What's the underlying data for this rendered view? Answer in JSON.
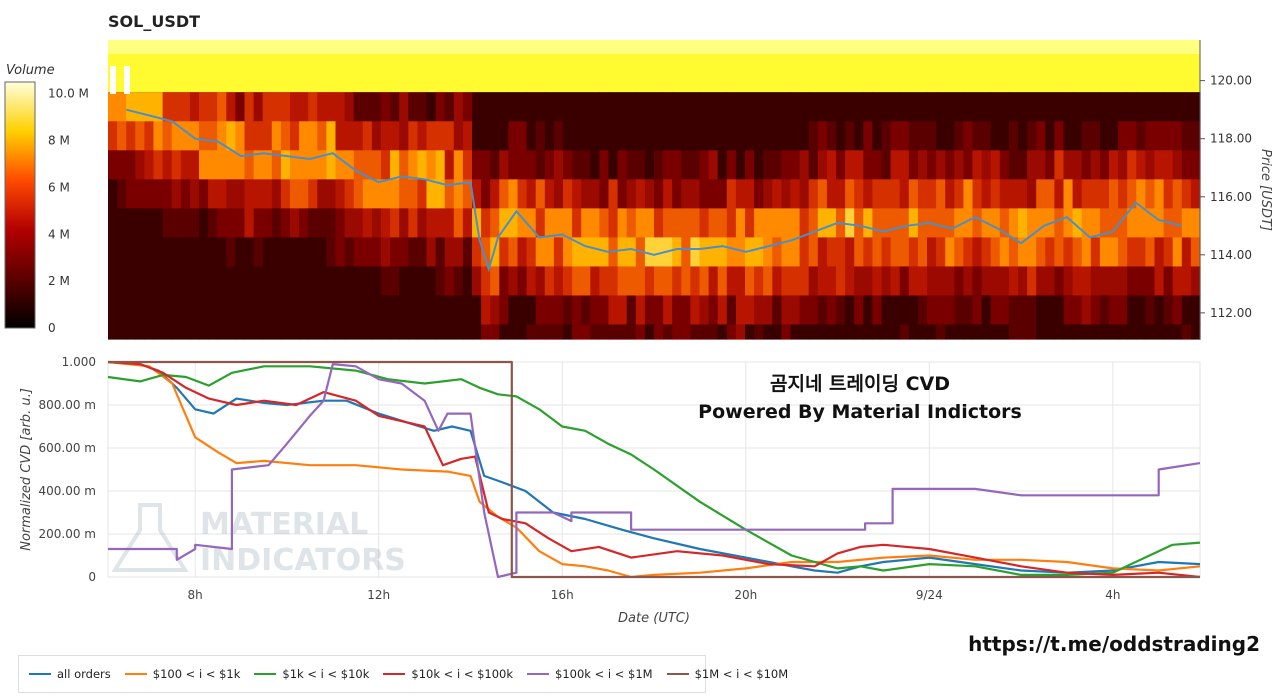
{
  "title": "SOL_USDT",
  "overlay": {
    "line1": "곰지네 트레이딩 CVD",
    "line2": "Powered By Material Indictors"
  },
  "url": "https://t.me/oddstrading2",
  "logo_text": [
    "MATERIAL",
    "INDICATORS"
  ],
  "chart_data": [
    {
      "type": "heatmap",
      "title": "SOL_USDT",
      "ylabel": "Price [USDT]",
      "colorbar_label": "Volume",
      "colorbar_ticks": [
        "10.0 M",
        "8 M",
        "6 M",
        "4 M",
        "2 M",
        "0"
      ],
      "colorbar_values": [
        10,
        8,
        6,
        4,
        2,
        0
      ],
      "y_ticks": [
        "112.00",
        "114.00",
        "116.00",
        "118.00",
        "120.00"
      ],
      "y_tick_values": [
        112,
        114,
        116,
        118,
        120
      ],
      "ylim": [
        111.1,
        121.4
      ],
      "price_series": {
        "name": "price",
        "x": [
          6.5,
          7.0,
          7.5,
          8.0,
          8.5,
          9.0,
          9.5,
          10.0,
          10.5,
          11.0,
          11.5,
          12.0,
          12.5,
          13.0,
          13.5,
          14.0,
          14.2,
          14.4,
          14.6,
          15.0,
          15.5,
          16.0,
          16.5,
          17.0,
          17.5,
          18.0,
          18.5,
          19.0,
          19.5,
          20.0,
          20.5,
          21.0,
          21.5,
          22.0,
          22.5,
          23.0,
          23.5,
          24.0,
          24.5,
          25.0,
          25.5,
          26.0,
          26.5,
          27.0,
          27.5,
          28.0,
          28.5,
          29.0,
          29.5
        ],
        "y": [
          119.0,
          118.8,
          118.6,
          118.0,
          117.9,
          117.4,
          117.5,
          117.4,
          117.3,
          117.5,
          116.9,
          116.5,
          116.7,
          116.6,
          116.4,
          116.5,
          114.5,
          113.5,
          114.6,
          115.5,
          114.6,
          114.7,
          114.3,
          114.1,
          114.2,
          114.0,
          114.2,
          114.2,
          114.3,
          114.1,
          114.3,
          114.5,
          114.8,
          115.1,
          115.0,
          114.8,
          115.0,
          115.1,
          114.9,
          115.3,
          114.9,
          114.4,
          115.0,
          115.3,
          114.6,
          114.8,
          115.8,
          115.2,
          115.0
        ]
      }
    },
    {
      "type": "line",
      "xlabel": "Date (UTC)",
      "ylabel": "Normalized CVD [arb. u.]",
      "x_ticks": [
        "8h",
        "12h",
        "16h",
        "20h",
        "9/24",
        "4h"
      ],
      "x_tick_values": [
        8,
        12,
        16,
        20,
        24,
        28
      ],
      "xlim": [
        6.1,
        29.9
      ],
      "y_ticks": [
        "0",
        "200.00 m",
        "400.00 m",
        "600.00 m",
        "800.00 m",
        "1.000"
      ],
      "y_tick_values": [
        0,
        0.2,
        0.4,
        0.6,
        0.8,
        1.0
      ],
      "ylim": [
        0,
        1.0
      ],
      "series": [
        {
          "name": "all orders",
          "color": "#1f77b4",
          "x": [
            6.1,
            6.8,
            7.2,
            7.6,
            8.0,
            8.4,
            8.9,
            9.5,
            10.0,
            10.8,
            11.3,
            12.0,
            12.6,
            13.2,
            13.6,
            14.0,
            14.3,
            14.7,
            15.2,
            15.8,
            16.5,
            17.3,
            18.0,
            19.0,
            20.0,
            21.0,
            21.5,
            22.0,
            22.5,
            23.0,
            24.0,
            25.0,
            26.0,
            27.0,
            28.0,
            29.0,
            29.9
          ],
          "y": [
            1.0,
            0.99,
            0.96,
            0.88,
            0.78,
            0.76,
            0.83,
            0.81,
            0.8,
            0.82,
            0.82,
            0.76,
            0.72,
            0.68,
            0.7,
            0.68,
            0.47,
            0.44,
            0.4,
            0.3,
            0.27,
            0.22,
            0.18,
            0.13,
            0.09,
            0.05,
            0.03,
            0.02,
            0.05,
            0.07,
            0.09,
            0.06,
            0.03,
            0.02,
            0.03,
            0.07,
            0.06
          ]
        },
        {
          "name": "$100 < i < $1k",
          "color": "#ff7f0e",
          "x": [
            6.1,
            7.0,
            7.5,
            8.0,
            8.5,
            8.9,
            9.5,
            10.5,
            11.5,
            12.5,
            13.5,
            14.0,
            14.2,
            14.6,
            15.0,
            15.5,
            16.0,
            16.5,
            17.0,
            17.5,
            18.0,
            19.0,
            20.0,
            21.0,
            22.0,
            23.0,
            24.0,
            25.0,
            26.0,
            27.0,
            28.0,
            29.0,
            29.9
          ],
          "y": [
            1.0,
            0.98,
            0.9,
            0.65,
            0.58,
            0.53,
            0.54,
            0.52,
            0.52,
            0.5,
            0.49,
            0.47,
            0.35,
            0.28,
            0.23,
            0.12,
            0.06,
            0.05,
            0.03,
            0.0,
            0.01,
            0.02,
            0.04,
            0.07,
            0.07,
            0.09,
            0.1,
            0.08,
            0.08,
            0.07,
            0.04,
            0.03,
            0.05
          ]
        },
        {
          "name": "$1k < i < $10k",
          "color": "#2ca02c",
          "x": [
            6.1,
            6.8,
            7.3,
            7.8,
            8.3,
            8.8,
            9.5,
            10.5,
            11.5,
            12.2,
            13.0,
            13.8,
            14.2,
            14.6,
            15.0,
            15.5,
            16.0,
            16.5,
            17.0,
            17.5,
            18.0,
            19.0,
            20.0,
            21.0,
            22.0,
            22.5,
            23.0,
            24.0,
            25.0,
            26.0,
            27.0,
            28.0,
            28.8,
            29.3,
            29.9
          ],
          "y": [
            0.93,
            0.91,
            0.94,
            0.93,
            0.89,
            0.95,
            0.98,
            0.98,
            0.96,
            0.92,
            0.9,
            0.92,
            0.88,
            0.85,
            0.84,
            0.78,
            0.7,
            0.68,
            0.62,
            0.57,
            0.5,
            0.35,
            0.22,
            0.1,
            0.04,
            0.05,
            0.03,
            0.06,
            0.05,
            0.01,
            0.01,
            0.02,
            0.1,
            0.15,
            0.16
          ]
        },
        {
          "name": "$10k < i < $100k",
          "color": "#d62728",
          "x": [
            6.1,
            6.8,
            7.3,
            7.8,
            8.3,
            8.9,
            9.5,
            10.2,
            10.8,
            11.5,
            12.0,
            12.6,
            13.0,
            13.4,
            13.8,
            14.1,
            14.4,
            14.7,
            15.2,
            15.7,
            16.2,
            16.8,
            17.5,
            18.5,
            19.5,
            20.5,
            21.5,
            22.0,
            22.5,
            23.0,
            24.0,
            25.0,
            26.0,
            27.0,
            28.0,
            29.0,
            29.9
          ],
          "y": [
            1.0,
            0.99,
            0.95,
            0.88,
            0.83,
            0.8,
            0.82,
            0.8,
            0.86,
            0.82,
            0.75,
            0.72,
            0.7,
            0.52,
            0.55,
            0.56,
            0.3,
            0.27,
            0.25,
            0.18,
            0.12,
            0.14,
            0.09,
            0.12,
            0.1,
            0.06,
            0.05,
            0.11,
            0.14,
            0.15,
            0.13,
            0.09,
            0.05,
            0.02,
            0.01,
            0.02,
            0.0
          ]
        },
        {
          "name": "$100k < i < $1M",
          "color": "#9467bd",
          "x": [
            6.1,
            7.6,
            7.6,
            8.0,
            8.0,
            8.8,
            8.8,
            9.6,
            10.0,
            10.5,
            10.8,
            11.0,
            11.5,
            12.0,
            12.5,
            13.0,
            13.3,
            13.5,
            14.0,
            14.3,
            14.6,
            15.0,
            15.0,
            15.8,
            16.2,
            16.2,
            17.5,
            17.5,
            19.0,
            20.0,
            21.0,
            22.0,
            22.6,
            22.6,
            23.2,
            23.2,
            24.0,
            25.0,
            26.0,
            26.0,
            27.0,
            28.0,
            29.0,
            29.0,
            29.9
          ],
          "y": [
            0.13,
            0.13,
            0.08,
            0.13,
            0.15,
            0.13,
            0.5,
            0.52,
            0.62,
            0.75,
            0.82,
            0.99,
            0.98,
            0.92,
            0.9,
            0.82,
            0.68,
            0.76,
            0.76,
            0.3,
            0.0,
            0.02,
            0.3,
            0.3,
            0.26,
            0.3,
            0.3,
            0.22,
            0.22,
            0.22,
            0.22,
            0.22,
            0.22,
            0.25,
            0.25,
            0.41,
            0.41,
            0.41,
            0.38,
            0.38,
            0.38,
            0.38,
            0.38,
            0.5,
            0.53
          ]
        },
        {
          "name": "$1M < i < $10M",
          "color": "#8c564b",
          "x": [
            6.1,
            14.9,
            14.9,
            29.9
          ],
          "y": [
            1.0,
            1.0,
            0.0,
            0.0
          ]
        }
      ]
    }
  ]
}
